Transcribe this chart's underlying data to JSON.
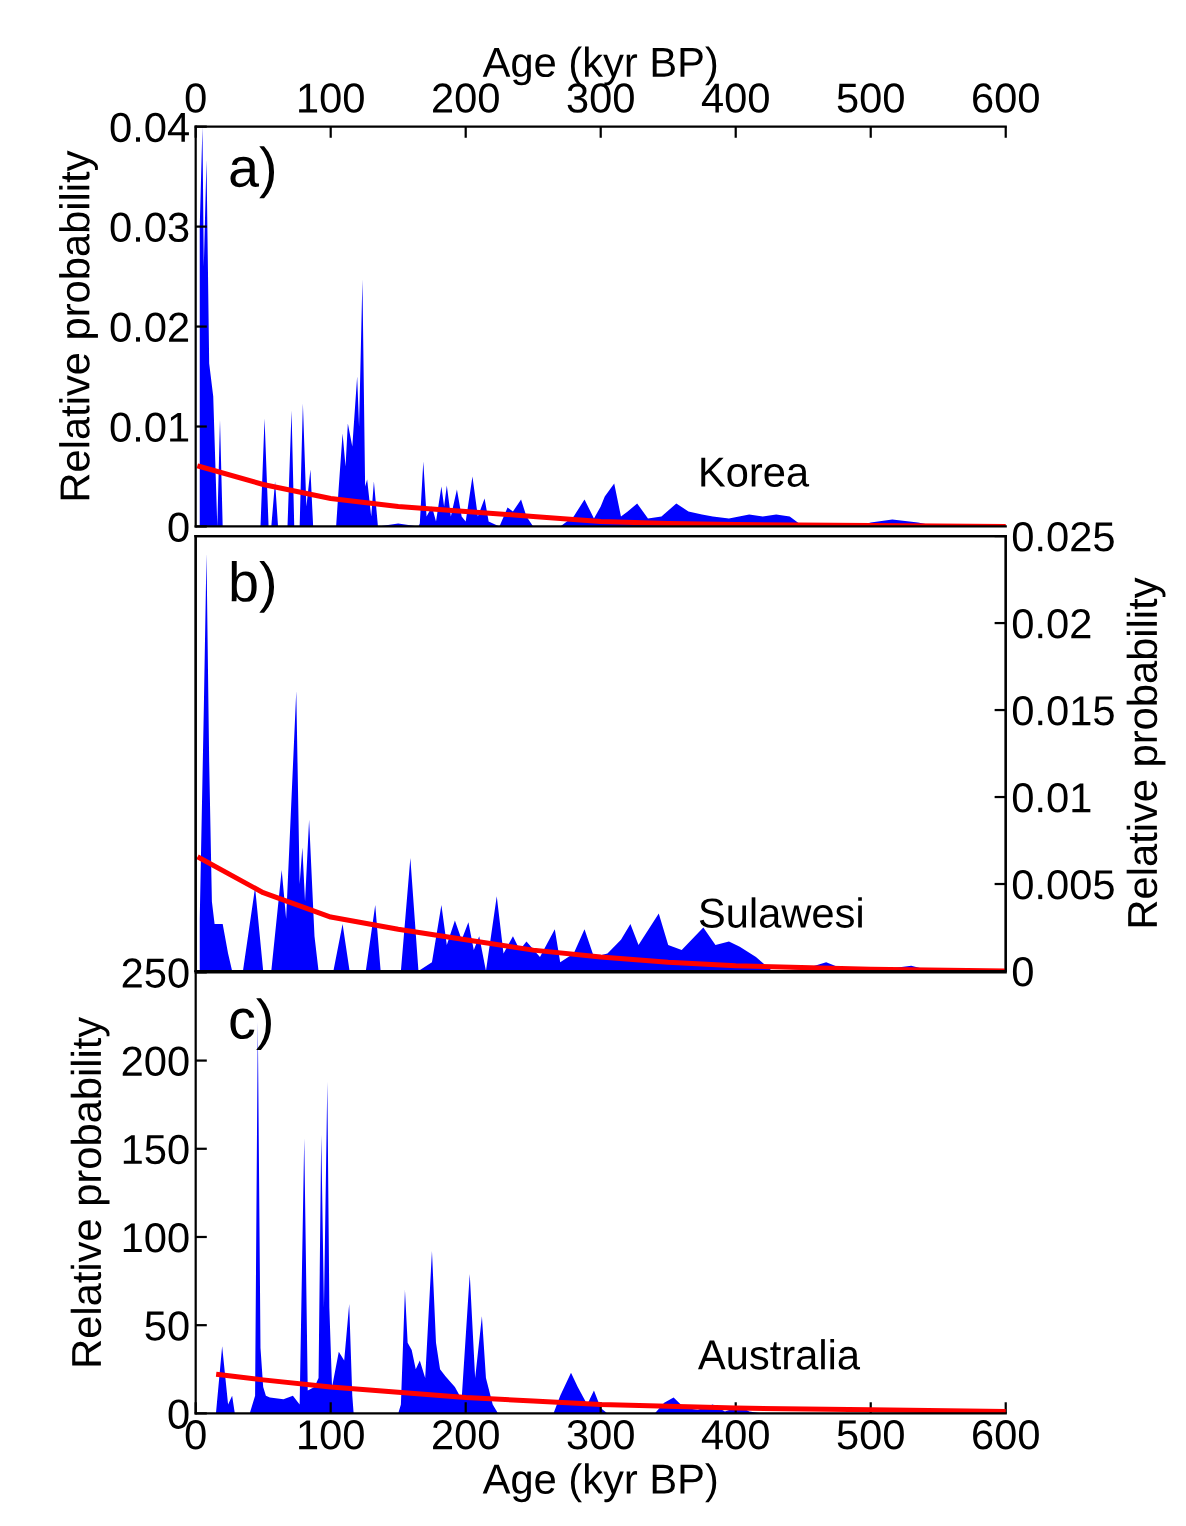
{
  "chart_data": [
    {
      "type": "area",
      "xlabel": "Age (kyr BP)",
      "xlim": [
        0,
        600
      ],
      "xticks": [
        0,
        100,
        200,
        300,
        400,
        500,
        600
      ],
      "ylabel": "Relative probability",
      "ylim": [
        0,
        0.04
      ],
      "yticks": [
        0,
        0.01,
        0.02,
        0.03,
        0.04
      ],
      "grid": false,
      "annotations": [
        "a)",
        "Korea"
      ],
      "series": [
        {
          "color": "#0000ff",
          "x": [
            3,
            5,
            6,
            8,
            10,
            13,
            16,
            18,
            20,
            48,
            51,
            54,
            56,
            58.8,
            61,
            68,
            71,
            73,
            77,
            79.4,
            82,
            85,
            87,
            104,
            106,
            108.8,
            111,
            112.7,
            116,
            119.6,
            121,
            123.5,
            125.5,
            127,
            130,
            132,
            135,
            150,
            165,
            166,
            168.6,
            171,
            175,
            178,
            182,
            184,
            186,
            189,
            193.5,
            197,
            200,
            205,
            209,
            214,
            217,
            225,
            231,
            235,
            241,
            245,
            250,
            270,
            280,
            288,
            295,
            300,
            303,
            310,
            315,
            320,
            327,
            335,
            345,
            356,
            365,
            375,
            383,
            395,
            410,
            420,
            430,
            440,
            447,
            455,
            490,
            500,
            516,
            535,
            550,
            600
          ],
          "values": [
            0.03,
            0.04,
            0.026,
            0.0367,
            0.0163,
            0.013,
            0,
            0.0107,
            0,
            0,
            0.0108,
            0,
            0,
            0.0045,
            0,
            0,
            0.0116,
            0,
            0,
            0.0123,
            0.002,
            0.0057,
            0,
            0,
            0.004,
            0.0093,
            0.006,
            0.0103,
            0.008,
            0.015,
            0.01,
            0.0247,
            0.004,
            0.0047,
            0.001,
            0.0045,
            0,
            0.0003,
            0,
            0.0003,
            0.0065,
            0.001,
            0.002,
            0.0005,
            0.004,
            0.002,
            0.0041,
            0.001,
            0.0037,
            0.001,
            0.0005,
            0.005,
            0.001,
            0.0028,
            0.0005,
            0,
            0.0019,
            0.0015,
            0.0027,
            0.001,
            0,
            0,
            0.001,
            0.0027,
            0.0008,
            0.002,
            0.003,
            0.0043,
            0.001,
            0.0015,
            0.0023,
            0.0008,
            0.001,
            0.0023,
            0.0015,
            0.0012,
            0.001,
            0.0008,
            0.0012,
            0.001,
            0.0012,
            0.001,
            0.0003,
            0,
            0,
            0.0004,
            0.0007,
            0.0004,
            0,
            0
          ]
        },
        {
          "type": "line",
          "color": "#ff0000",
          "x": [
            3,
            50,
            100,
            150,
            200,
            250,
            300,
            350,
            400,
            500,
            600
          ],
          "values": [
            0.006,
            0.0042,
            0.0028,
            0.002,
            0.0015,
            0.001,
            0.0005,
            0.0003,
            0.0002,
            0.0001,
            0
          ]
        }
      ]
    },
    {
      "type": "area",
      "xlim": [
        0,
        600
      ],
      "y2label": "Relative probability",
      "y2lim": [
        0,
        0.025
      ],
      "y2ticks": [
        0,
        0.005,
        0.01,
        0.015,
        0.02,
        0.025
      ],
      "tick_labels": "y",
      "grid": false,
      "annotations": [
        "b)",
        "Sulawesi"
      ],
      "series": [
        {
          "axis": "y2",
          "color": "#0000ff",
          "x": [
            3,
            6,
            8,
            10,
            12,
            14,
            20,
            24,
            27,
            35,
            44,
            50,
            56,
            63.7,
            67,
            74.5,
            77,
            79,
            81,
            84,
            88,
            91,
            102,
            108.8,
            114,
            126,
            133,
            137,
            152,
            159,
            165,
            175,
            182,
            186,
            192,
            197,
            202,
            206,
            210,
            215,
            223,
            228,
            235,
            240,
            245,
            255,
            266,
            270,
            280,
            288,
            295,
            305,
            315,
            322,
            328,
            343,
            350,
            360,
            376,
            385,
            395,
            403,
            415,
            427,
            450,
            467,
            480,
            510,
            530,
            545,
            600
          ],
          "values": [
            0.003,
            0.015,
            0.024,
            0.012,
            0.004,
            0.0027,
            0.0027,
            0.001,
            0,
            0,
            0.0048,
            0,
            0,
            0.0058,
            0.003,
            0.0161,
            0.005,
            0.0071,
            0.004,
            0.0087,
            0.002,
            0,
            0,
            0.0027,
            0,
            0,
            0.0038,
            0,
            0,
            0.0065,
            0,
            0.0005,
            0.0038,
            0.0015,
            0.0029,
            0.0018,
            0.0028,
            0.0012,
            0.002,
            0,
            0.0043,
            0.001,
            0.002,
            0.0012,
            0.0017,
            0.0008,
            0.0024,
            0.0005,
            0.001,
            0.0024,
            0.0008,
            0.001,
            0.0018,
            0.0027,
            0.0015,
            0.0033,
            0.0015,
            0.0012,
            0.0025,
            0.0015,
            0.0017,
            0.0014,
            0.0008,
            0,
            0.0001,
            0.0005,
            0.0001,
            0.0001,
            0.0003,
            0,
            0
          ]
        },
        {
          "type": "line",
          "axis": "y2",
          "color": "#ff0000",
          "x": [
            3,
            50,
            100,
            150,
            200,
            250,
            300,
            350,
            400,
            500,
            600
          ],
          "values": [
            0.0065,
            0.0045,
            0.0031,
            0.0024,
            0.0018,
            0.0012,
            0.0008,
            0.0005,
            0.0003,
            0.0001,
            0
          ]
        }
      ]
    },
    {
      "type": "area",
      "xlabel": "Age (kyr BP)",
      "xlim": [
        0,
        600
      ],
      "xticks": [
        0,
        100,
        200,
        300,
        400,
        500,
        600
      ],
      "ylabel": "Relative probability",
      "ylim": [
        0,
        250
      ],
      "yticks": [
        0,
        50,
        100,
        150,
        200,
        250
      ],
      "grid": false,
      "annotations": [
        "c)",
        "Australia"
      ],
      "series": [
        {
          "color": "#0000ff",
          "x": [
            15,
            19.6,
            22,
            24,
            27,
            29,
            40,
            44,
            46,
            48,
            50,
            52,
            55,
            65,
            72,
            77,
            80.4,
            83,
            88,
            91,
            93,
            95,
            97.5,
            99,
            101,
            106,
            110,
            113.7,
            116,
            117,
            150,
            152,
            155,
            157,
            160,
            163,
            166,
            170,
            175,
            178,
            181,
            185,
            192,
            197,
            203,
            207,
            212,
            215,
            220,
            224,
            265,
            270,
            278,
            283,
            290,
            295,
            300,
            305,
            340,
            347,
            354,
            362,
            372,
            383,
            392,
            403,
            410,
            420,
            600
          ],
          "values": [
            0,
            38,
            20,
            5,
            10,
            0,
            0,
            10,
            222,
            37,
            15,
            10,
            9,
            8,
            10,
            5,
            156,
            13,
            15,
            20,
            158,
            60,
            188,
            60,
            15,
            35,
            30,
            62,
            10,
            0,
            0,
            5,
            70,
            40,
            36,
            25,
            30,
            20,
            92,
            40,
            25,
            21,
            15,
            8,
            79,
            20,
            55,
            20,
            5,
            0,
            0,
            10,
            23,
            15,
            5,
            13,
            3,
            0,
            0,
            6,
            9,
            3,
            2,
            5,
            1,
            4,
            1,
            0,
            0
          ]
        },
        {
          "type": "line",
          "color": "#ff0000",
          "x": [
            17,
            50,
            100,
            150,
            200,
            250,
            300,
            350,
            400,
            500,
            600
          ],
          "values": [
            22,
            19,
            15,
            12,
            9,
            7,
            5,
            4,
            3,
            2,
            1
          ]
        }
      ]
    }
  ]
}
